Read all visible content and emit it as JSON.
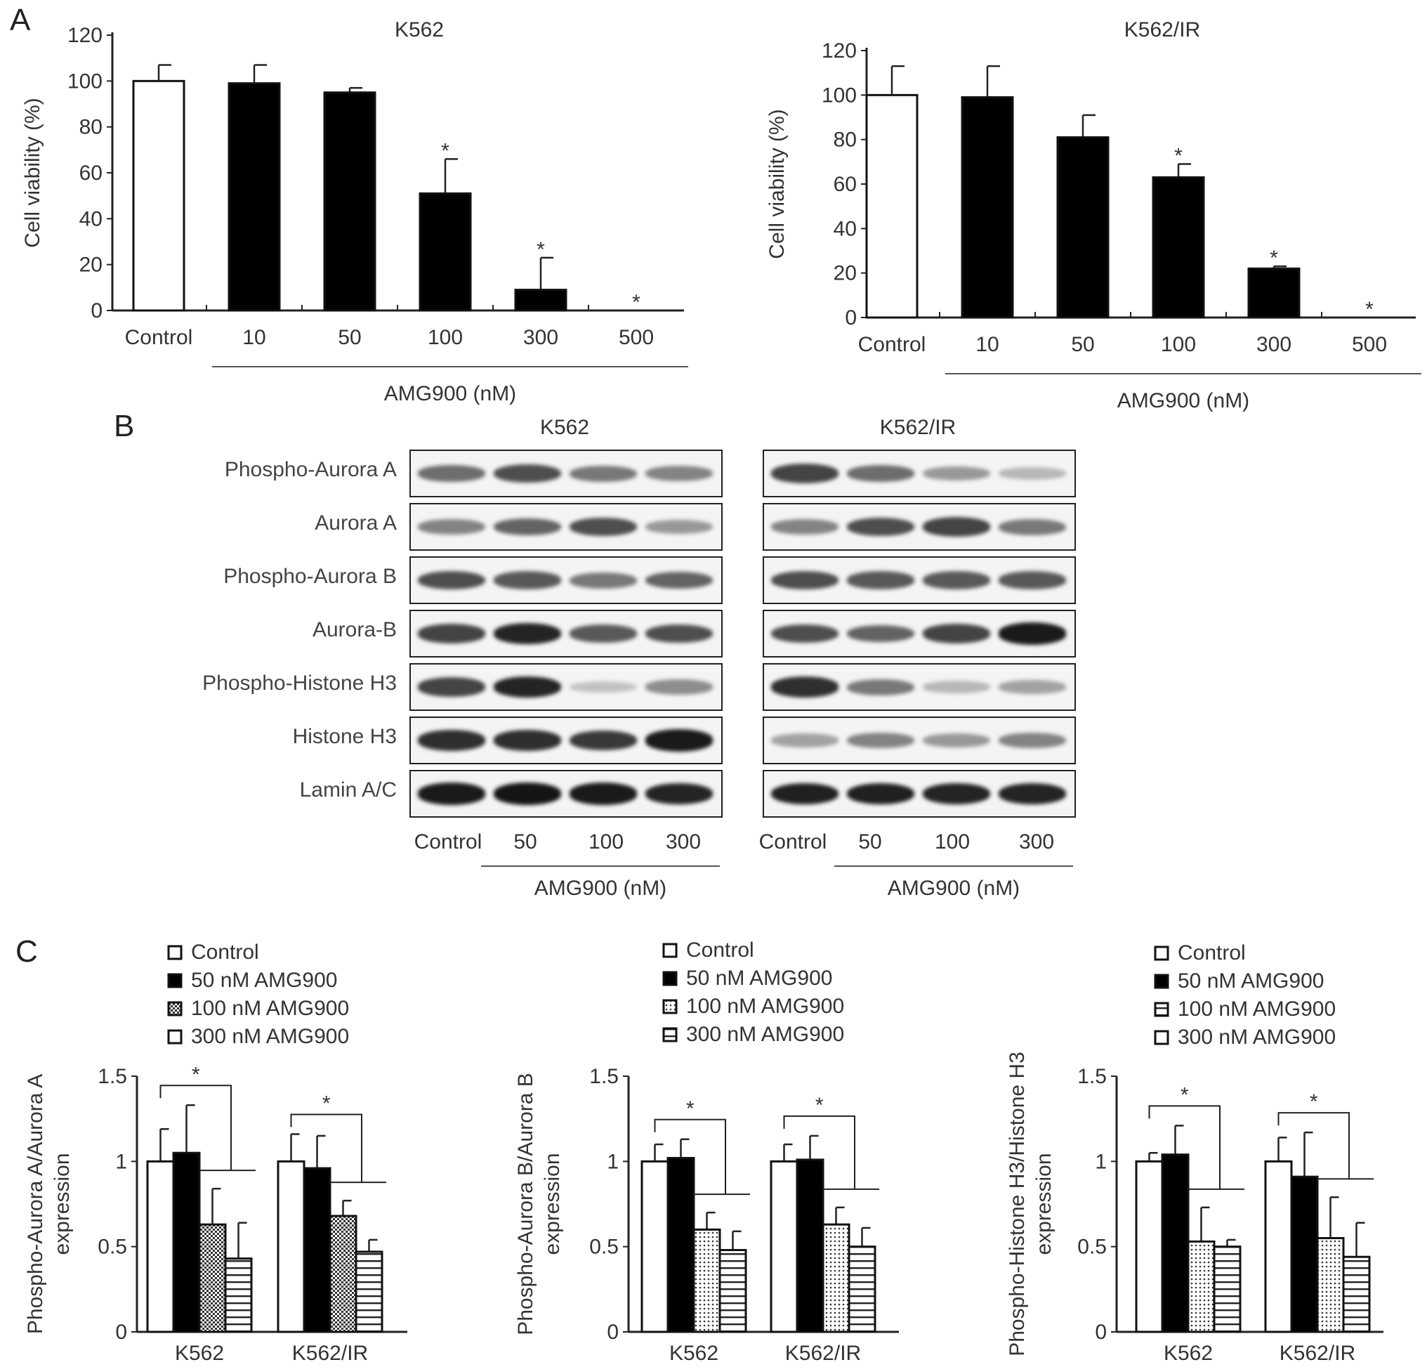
{
  "panels": {
    "A": "A",
    "B": "B",
    "C": "C"
  },
  "chart_data": [
    {
      "id": "A-K562",
      "type": "bar",
      "title": "K562",
      "ylabel": "Cell viability (%)",
      "xlabel": "AMG900 (nM)",
      "ylim": [
        0,
        120
      ],
      "yticks": [
        0,
        20,
        40,
        60,
        80,
        100,
        120
      ],
      "categories": [
        "Control",
        "10",
        "50",
        "100",
        "300",
        "500"
      ],
      "values": [
        100,
        99,
        95,
        51,
        9,
        0
      ],
      "errors": [
        7,
        8,
        2,
        15,
        14,
        0
      ],
      "significance": [
        "",
        "",
        "",
        "*",
        "*",
        "*"
      ],
      "colors": [
        "#ffffff",
        "#000000",
        "#000000",
        "#000000",
        "#000000",
        "#000000"
      ]
    },
    {
      "id": "A-K562IR",
      "type": "bar",
      "title": "K562/IR",
      "ylabel": "Cell viability (%)",
      "xlabel": "AMG900 (nM)",
      "ylim": [
        0,
        120
      ],
      "yticks": [
        0,
        20,
        40,
        60,
        80,
        100,
        120
      ],
      "categories": [
        "Control",
        "10",
        "50",
        "100",
        "300",
        "500"
      ],
      "values": [
        100,
        99,
        81,
        63,
        22,
        0
      ],
      "errors": [
        13,
        14,
        10,
        6,
        1,
        0
      ],
      "significance": [
        "",
        "",
        "",
        "*",
        "*",
        "*"
      ],
      "colors": [
        "#ffffff",
        "#000000",
        "#000000",
        "#000000",
        "#000000",
        "#000000"
      ]
    },
    {
      "id": "C-AuroraA",
      "type": "bar",
      "ylabel_lines": [
        "Phospho-Aurora A/Aurora A",
        "expression"
      ],
      "legend": [
        "Control",
        "50 nM AMG900",
        "100 nM AMG900",
        "300 nM AMG900"
      ],
      "legend_symbols": [
        "white",
        "black",
        "check",
        "white"
      ],
      "ylim": [
        0,
        1.5
      ],
      "yticks": [
        "0",
        "0.5",
        "1",
        "1.5"
      ],
      "categories": [
        "K562",
        "K562/IR"
      ],
      "series": [
        {
          "name": "Control",
          "values": [
            1.0,
            1.0
          ],
          "errors": [
            0.19,
            0.16
          ]
        },
        {
          "name": "50 nM AMG900",
          "values": [
            1.05,
            0.96
          ],
          "errors": [
            0.28,
            0.19
          ]
        },
        {
          "name": "100 nM AMG900",
          "values": [
            0.63,
            0.68
          ],
          "errors": [
            0.21,
            0.09
          ]
        },
        {
          "name": "300 nM AMG900",
          "values": [
            0.43,
            0.47
          ],
          "errors": [
            0.21,
            0.07
          ]
        }
      ],
      "significance": "*"
    },
    {
      "id": "C-AuroraB",
      "type": "bar",
      "ylabel_lines": [
        "Phospho-Aurora B/Aurora B",
        "expression"
      ],
      "legend": [
        "Control",
        "50 nM AMG900",
        "100 nM AMG900",
        "300 nM AMG900"
      ],
      "legend_symbols": [
        "white",
        "black",
        "dots",
        "stripes"
      ],
      "ylim": [
        0,
        1.5
      ],
      "yticks": [
        "0",
        "0.5",
        "1",
        "1.5"
      ],
      "categories": [
        "K562",
        "K562/IR"
      ],
      "series": [
        {
          "name": "Control",
          "values": [
            1.0,
            1.0
          ],
          "errors": [
            0.1,
            0.1
          ]
        },
        {
          "name": "50 nM AMG900",
          "values": [
            1.02,
            1.01
          ],
          "errors": [
            0.11,
            0.14
          ]
        },
        {
          "name": "100 nM AMG900",
          "values": [
            0.6,
            0.63
          ],
          "errors": [
            0.1,
            0.1
          ]
        },
        {
          "name": "300 nM AMG900",
          "values": [
            0.48,
            0.5
          ],
          "errors": [
            0.11,
            0.11
          ]
        }
      ],
      "significance": "*"
    },
    {
      "id": "C-H3",
      "type": "bar",
      "ylabel_lines": [
        "Phospho-Histone H3/Histone H3",
        "expression"
      ],
      "legend": [
        "Control",
        "50 nM AMG900",
        "100 nM AMG900",
        "300 nM AMG900"
      ],
      "legend_symbols": [
        "white",
        "black",
        "stripes",
        "white"
      ],
      "ylim": [
        0,
        1.5
      ],
      "yticks": [
        "0",
        "0.5",
        "1",
        "1.5"
      ],
      "categories": [
        "K562",
        "K562/IR"
      ],
      "series": [
        {
          "name": "Control",
          "values": [
            1.0,
            1.0
          ],
          "errors": [
            0.05,
            0.14
          ]
        },
        {
          "name": "50 nM AMG900",
          "values": [
            1.04,
            0.91
          ],
          "errors": [
            0.17,
            0.26
          ]
        },
        {
          "name": "100 nM AMG900",
          "values": [
            0.53,
            0.55
          ],
          "errors": [
            0.2,
            0.24
          ]
        },
        {
          "name": "300 nM AMG900",
          "values": [
            0.5,
            0.44
          ],
          "errors": [
            0.04,
            0.2
          ]
        }
      ],
      "significance": "*"
    }
  ],
  "blot": {
    "labels": [
      "Phospho-Aurora A",
      "Aurora A",
      "Phospho-Aurora B",
      "Aurora-B",
      "Phospho-Histone H3",
      "Histone H3",
      "Lamin A/C"
    ],
    "lanes": [
      "Control",
      "50",
      "100",
      "300"
    ],
    "xlabel": "AMG900 (nM)",
    "panels": [
      {
        "title": "K562",
        "intensity": [
          [
            0.55,
            0.7,
            0.5,
            0.45
          ],
          [
            0.45,
            0.6,
            0.7,
            0.35
          ],
          [
            0.7,
            0.65,
            0.5,
            0.6
          ],
          [
            0.75,
            0.9,
            0.65,
            0.7
          ],
          [
            0.75,
            0.9,
            0.15,
            0.4
          ],
          [
            0.85,
            0.85,
            0.8,
            0.95
          ],
          [
            0.95,
            0.97,
            0.95,
            0.9
          ]
        ]
      },
      {
        "title": "K562/IR",
        "intensity": [
          [
            0.75,
            0.55,
            0.35,
            0.2
          ],
          [
            0.45,
            0.7,
            0.75,
            0.5
          ],
          [
            0.7,
            0.65,
            0.65,
            0.65
          ],
          [
            0.7,
            0.6,
            0.75,
            0.95
          ],
          [
            0.85,
            0.5,
            0.2,
            0.3
          ],
          [
            0.3,
            0.45,
            0.35,
            0.45
          ],
          [
            0.92,
            0.92,
            0.9,
            0.9
          ]
        ]
      }
    ]
  }
}
